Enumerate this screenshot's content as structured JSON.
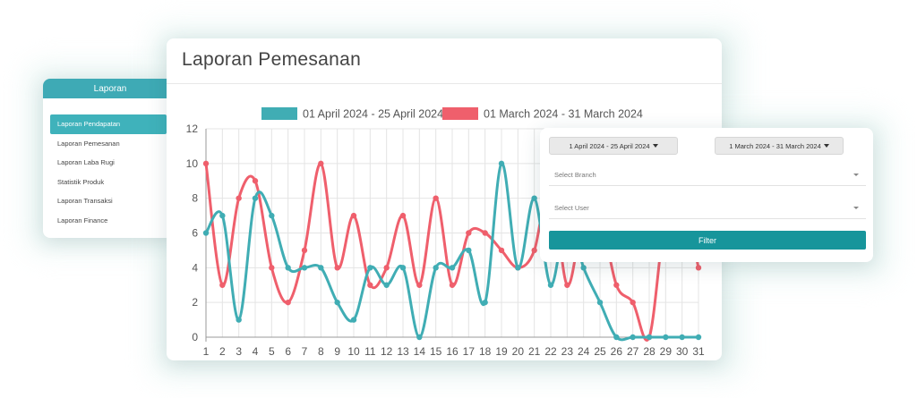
{
  "menu": {
    "header": "Laporan",
    "items": [
      {
        "label": "Laporan Pendapatan",
        "active": true
      },
      {
        "label": "Laporan Pemesanan",
        "active": false
      },
      {
        "label": "Laporan Laba Rugi",
        "active": false
      },
      {
        "label": "Statistik Produk",
        "active": false
      },
      {
        "label": "Laporan Transaksi",
        "active": false
      },
      {
        "label": "Laporan Finance",
        "active": false
      }
    ]
  },
  "report": {
    "title": "Laporan Pemesanan"
  },
  "filter": {
    "date_range_1": "1 April 2024 - 25 April 2024",
    "date_range_2": "1 March 2024 - 31 March 2024",
    "branch_placeholder": "Select Branch",
    "user_placeholder": "Select User",
    "button_label": "Filter"
  },
  "colors": {
    "teal": "#40adb4",
    "red": "#ef5f6c",
    "accent": "#17959b"
  },
  "chart_data": {
    "type": "line",
    "categories": [
      "1",
      "2",
      "3",
      "4",
      "5",
      "6",
      "7",
      "8",
      "9",
      "10",
      "11",
      "12",
      "13",
      "14",
      "15",
      "16",
      "17",
      "18",
      "19",
      "20",
      "21",
      "22",
      "23",
      "24",
      "25",
      "26",
      "27",
      "28",
      "29",
      "30",
      "31"
    ],
    "ylim": [
      0,
      12
    ],
    "yticks": [
      0,
      2,
      4,
      6,
      8,
      10,
      12
    ],
    "grid": true,
    "legend_position": "top",
    "series": [
      {
        "name": "01 April 2024 - 25 April 2024",
        "color": "#40adb4",
        "values": [
          6,
          7,
          1,
          8,
          7,
          4,
          4,
          4,
          2,
          1,
          4,
          3,
          4,
          0,
          4,
          4,
          5,
          2,
          10,
          4,
          8,
          3,
          7,
          4,
          2,
          0,
          0,
          0,
          0,
          0,
          0
        ]
      },
      {
        "name": "01 March 2024 - 31 March 2024",
        "color": "#ef5f6c",
        "values": [
          10,
          3,
          8,
          9,
          4,
          2,
          5,
          10,
          4,
          7,
          3,
          4,
          7,
          3,
          8,
          3,
          6,
          6,
          5,
          4,
          5,
          9,
          3,
          7,
          7,
          3,
          2,
          0,
          7,
          8,
          4
        ]
      }
    ]
  }
}
